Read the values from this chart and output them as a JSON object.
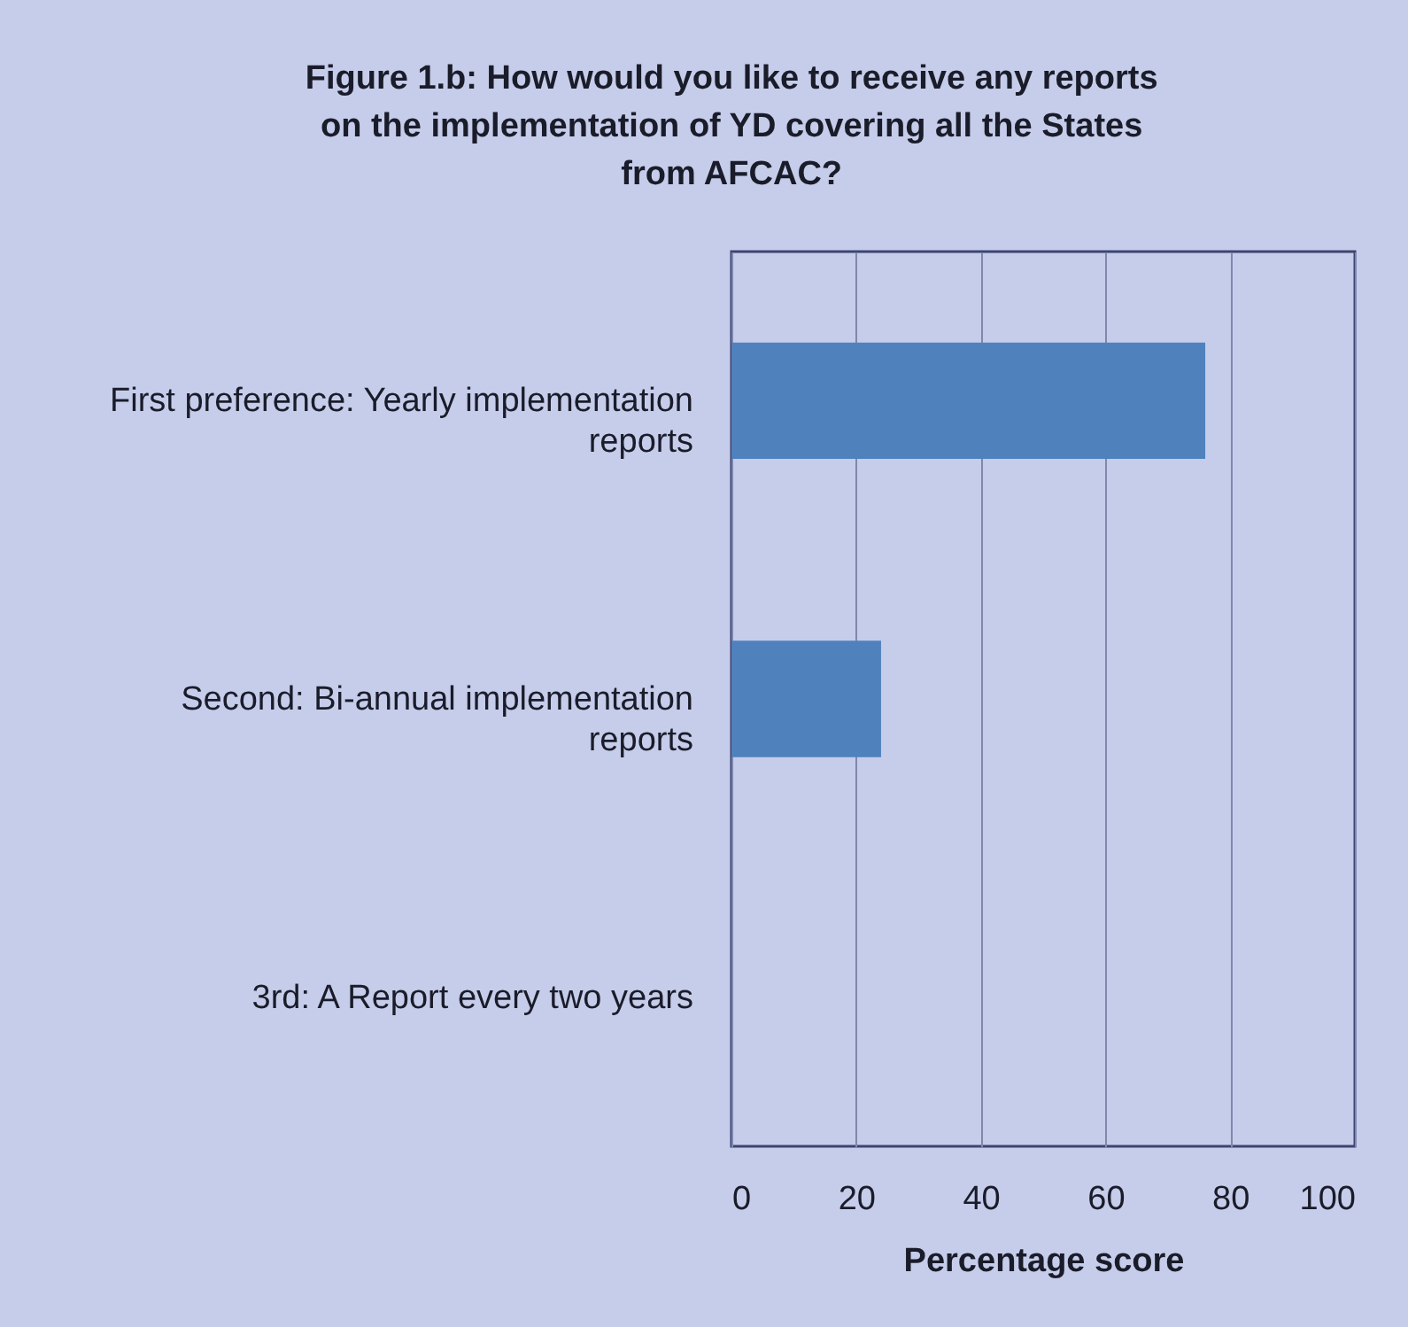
{
  "chart_data": {
    "type": "bar",
    "orientation": "horizontal",
    "title": "Figure 1.b: How would you like to receive any reports on the implementation of YD covering all the States from AFCAC?",
    "categories": [
      "First preference: Yearly implementation reports",
      "Second: Bi-annual implementation reports",
      "3rd: A Report every two years"
    ],
    "values": [
      76,
      24,
      0
    ],
    "color": "#4f81bd",
    "xlim": [
      0,
      100
    ],
    "xticks": [
      0,
      20,
      40,
      60,
      80,
      100
    ],
    "xlabel": "Percentage score",
    "grid": "x"
  }
}
